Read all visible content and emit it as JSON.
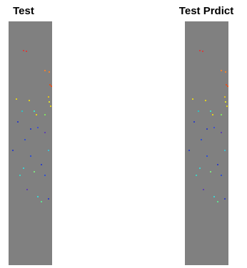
{
  "panels": [
    {
      "title": "Test"
    },
    {
      "title": "Test Prdict"
    }
  ]
}
